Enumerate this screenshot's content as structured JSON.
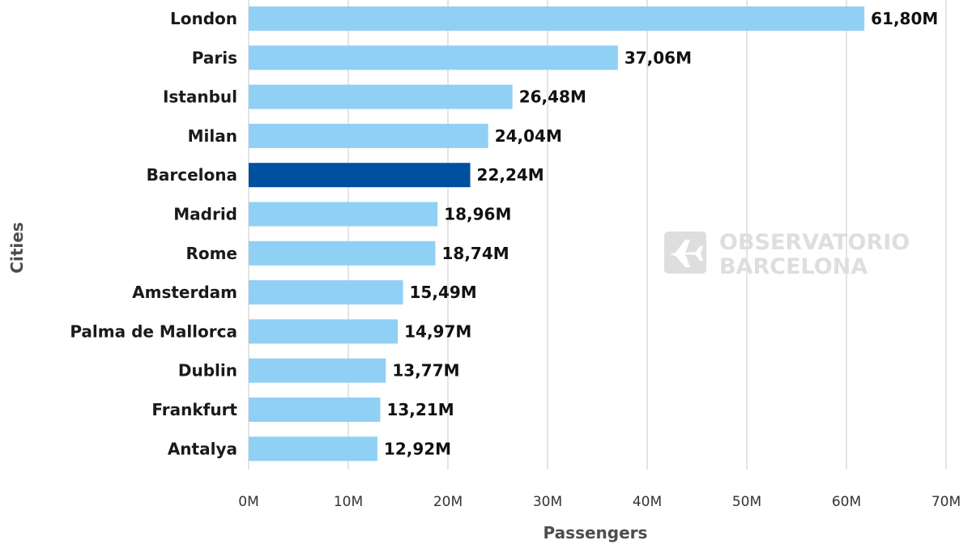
{
  "chart_data": {
    "type": "bar",
    "orientation": "horizontal",
    "categories": [
      "London",
      "Paris",
      "Istanbul",
      "Milan",
      "Barcelona",
      "Madrid",
      "Rome",
      "Amsterdam",
      "Palma de Mallorca",
      "Dublin",
      "Frankfurt",
      "Antalya"
    ],
    "values": [
      61.8,
      37.06,
      26.48,
      24.04,
      22.24,
      18.96,
      18.74,
      15.49,
      14.97,
      13.77,
      13.21,
      12.92
    ],
    "value_labels": [
      "61,80M",
      "37,06M",
      "26,48M",
      "24,04M",
      "22,24M",
      "18,96M",
      "18,74M",
      "15,49M",
      "14,97M",
      "13,77M",
      "13,21M",
      "12,92M"
    ],
    "highlight": "Barcelona",
    "xlabel": "Passengers",
    "ylabel": "Cities",
    "xlim": [
      0,
      70
    ],
    "xticks": [
      0,
      10,
      20,
      30,
      40,
      50,
      60,
      70
    ],
    "xtick_labels": [
      "0M",
      "10M",
      "20M",
      "30M",
      "40M",
      "50M",
      "60M",
      "70M"
    ],
    "grid": true,
    "colors": {
      "bar": "#91d0f5",
      "highlight": "#0050a0",
      "grid": "#c8c8c8"
    }
  },
  "watermark": {
    "line1": "OBSERVATORIO",
    "line2": "BARCELONA",
    "icon": "airplane-icon",
    "color": "#dedede"
  }
}
